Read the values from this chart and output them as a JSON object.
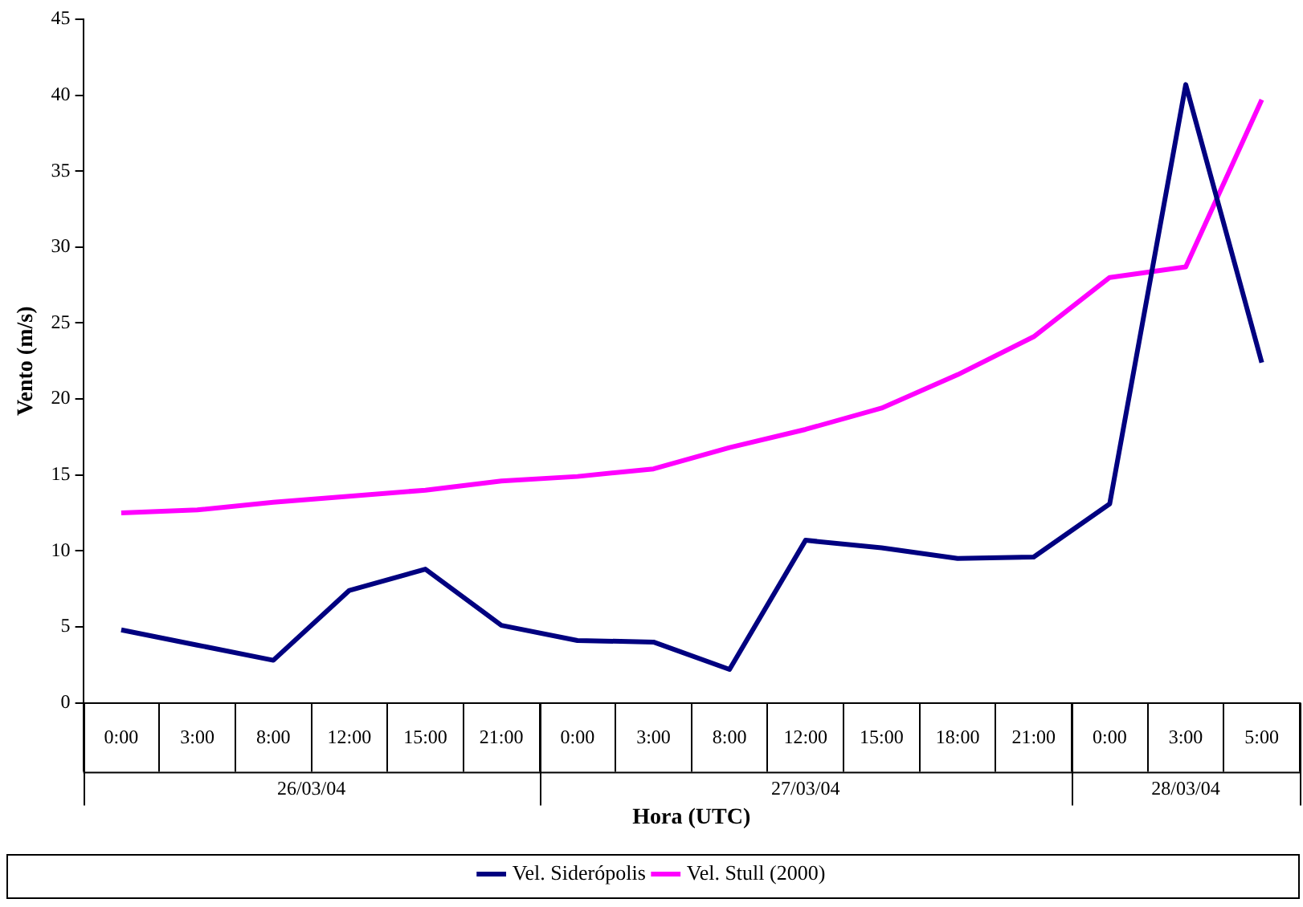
{
  "chart_data": {
    "type": "line",
    "xlabel": "Hora (UTC)",
    "ylabel": "Vento (m/s)",
    "categories": [
      "0:00",
      "3:00",
      "8:00",
      "12:00",
      "15:00",
      "21:00",
      "0:00",
      "3:00",
      "8:00",
      "12:00",
      "15:00",
      "18:00",
      "21:00",
      "0:00",
      "3:00",
      "5:00"
    ],
    "series": [
      {
        "name": "Vel. Siderópolis",
        "color": "#000080",
        "values": [
          4.8,
          3.8,
          2.8,
          7.4,
          8.8,
          5.1,
          4.1,
          4.0,
          2.2,
          10.7,
          10.2,
          9.5,
          9.6,
          13.1,
          40.7,
          22.4
        ]
      },
      {
        "name": "Vel. Stull (2000)",
        "color": "#ff00ff",
        "values": [
          12.5,
          12.7,
          13.2,
          13.6,
          14.0,
          14.6,
          14.9,
          15.4,
          16.8,
          18.0,
          19.4,
          21.6,
          24.1,
          28.0,
          28.7,
          39.7
        ]
      }
    ],
    "annotations": [
      "26/03/04",
      "27/03/04",
      "28/03/04"
    ],
    "ylim": [
      0,
      45
    ],
    "yticks": [
      0,
      5,
      10,
      15,
      20,
      25,
      30,
      35,
      40,
      45
    ],
    "grid": false,
    "legend": "bottom",
    "marker": "none",
    "line_style": "solid"
  }
}
